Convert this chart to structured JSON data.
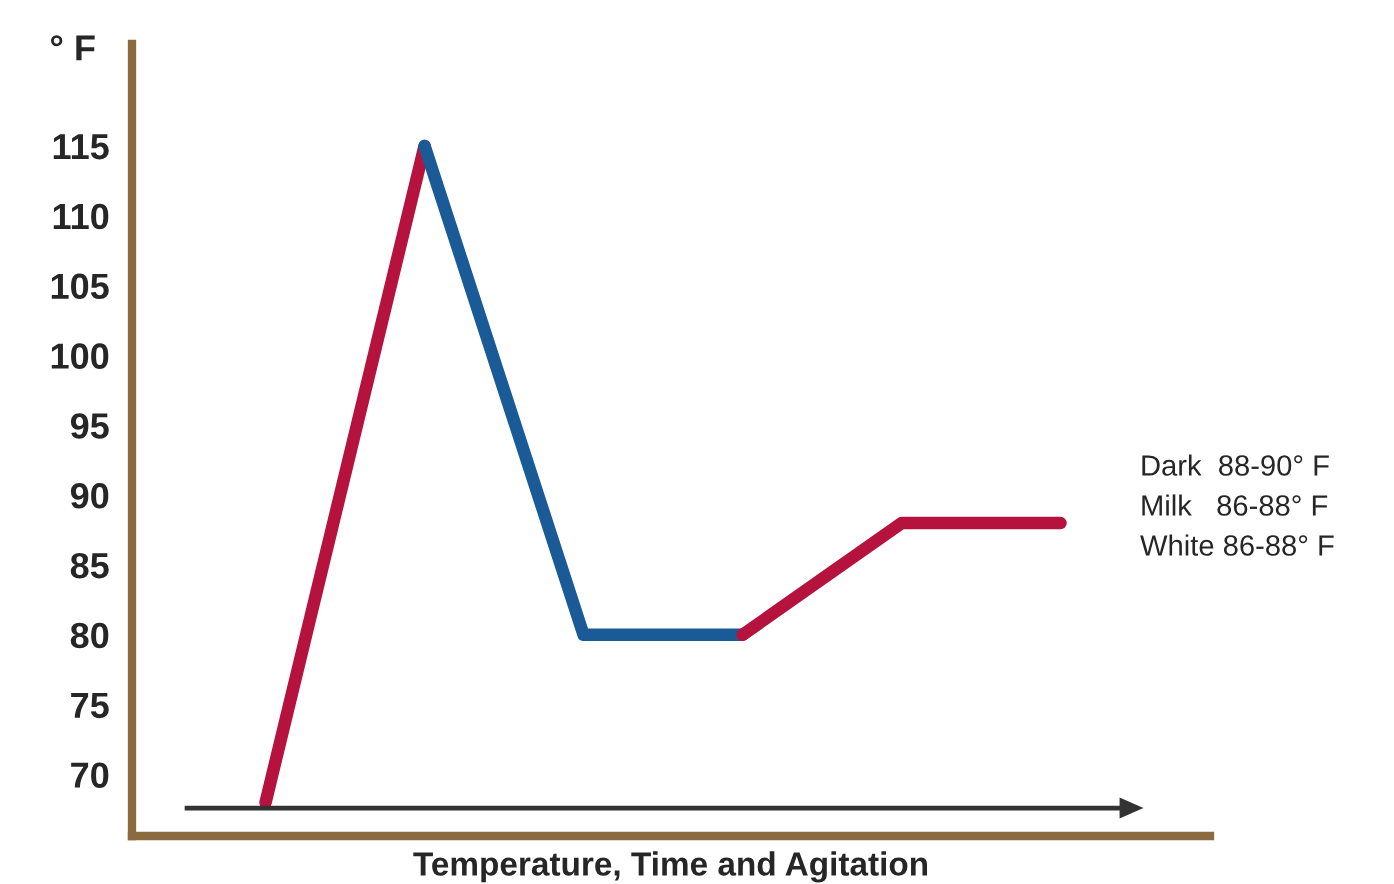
{
  "chart_data": {
    "type": "line",
    "xlabel": "Temperature, Time and Agitation",
    "ylabel": "° F",
    "ylim": [
      65.6,
      122.3
    ],
    "yticks": [
      70,
      75,
      80,
      85,
      90,
      95,
      100,
      105,
      110,
      115
    ],
    "categories": [
      null,
      null,
      null,
      null,
      null,
      null
    ],
    "series": [
      {
        "color": "#b5123e",
        "values": [
          68,
          115,
          null,
          null,
          null,
          null
        ]
      },
      {
        "color": "#1a5a96",
        "values": [
          null,
          115,
          80,
          80,
          null,
          null
        ]
      },
      {
        "color": "#b5123e",
        "values": [
          null,
          null,
          null,
          80,
          88,
          88
        ]
      }
    ],
    "annotations": [
      "Dark  88-90° F",
      "Milk   86-88° F",
      "White 86-88° F"
    ]
  }
}
